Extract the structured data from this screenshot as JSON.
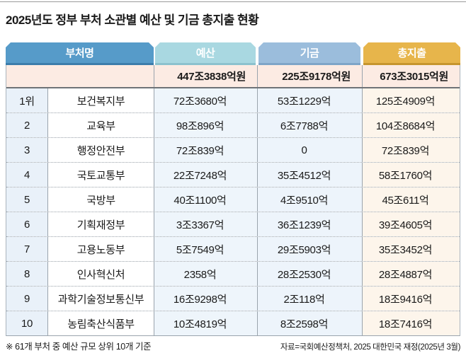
{
  "header": {
    "title": "2025년도 정부 부처 소관별 예산 및 기금 총지출 현황"
  },
  "chart_data": {
    "type": "table",
    "title": "2025년도 정부 부처 소관별 예산 및 기금 총지출 현황",
    "columns": [
      "부처명",
      "예산",
      "기금",
      "총지출"
    ],
    "totals_row": {
      "budget": "447조3838억원",
      "fund": "225조9178억원",
      "total": "673조3015억원"
    },
    "rows": [
      {
        "rank": "1위",
        "ministry": "보건복지부",
        "budget": "72조3680억",
        "fund": "53조1229억",
        "total": "125조4909억"
      },
      {
        "rank": "2",
        "ministry": "교육부",
        "budget": "98조896억",
        "fund": "6조7788억",
        "total": "104조8684억"
      },
      {
        "rank": "3",
        "ministry": "행정안전부",
        "budget": "72조839억",
        "fund": "0",
        "total": "72조839억"
      },
      {
        "rank": "4",
        "ministry": "국토교통부",
        "budget": "22조7248억",
        "fund": "35조4512억",
        "total": "58조1760억"
      },
      {
        "rank": "5",
        "ministry": "국방부",
        "budget": "40조1100억",
        "fund": "4조9510억",
        "total": "45조611억"
      },
      {
        "rank": "6",
        "ministry": "기획재정부",
        "budget": "3조3367억",
        "fund": "36조1239억",
        "total": "39조4605억"
      },
      {
        "rank": "7",
        "ministry": "고용노동부",
        "budget": "5조7549억",
        "fund": "29조5903억",
        "total": "35조3452억"
      },
      {
        "rank": "8",
        "ministry": "인사혁신처",
        "budget": "2358억",
        "fund": "28조2530억",
        "total": "28조4887억"
      },
      {
        "rank": "9",
        "ministry": "과학기술정보통신부",
        "budget": "16조9298억",
        "fund": "2조118억",
        "total": "18조9416억"
      },
      {
        "rank": "10",
        "ministry": "농림축산식품부",
        "budget": "10조4819억",
        "fund": "8조2598억",
        "total": "18조7416억"
      }
    ]
  },
  "footer": {
    "note": "※ 61개 부처 중 예산 규모 상위 10개 기준",
    "source": "자료=국회예산정책처, 2025 대한민국 재정(2025년 3월)"
  },
  "colors": {
    "tab_ministry": "#569bc9",
    "tab_budget": "#a9d8e1",
    "tab_fund": "#9bbddc",
    "tab_total": "#e7b54b",
    "totals_row_bg": "#fcebe3",
    "rank_col_bg": "#e9f1f9",
    "budget_col_bg": "#eef5fb",
    "fund_col_bg": "#edf4fb",
    "total_col_bg": "#fdf5eb"
  }
}
